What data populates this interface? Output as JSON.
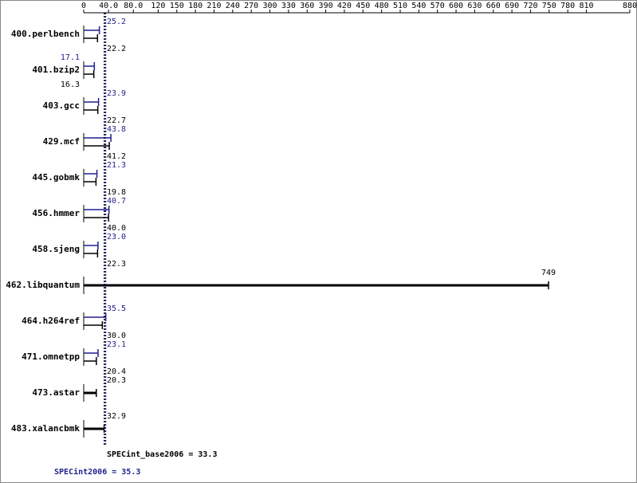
{
  "chart_data": {
    "type": "hbar-pair",
    "categories": [
      "400.perlbench",
      "401.bzip2",
      "403.gcc",
      "429.mcf",
      "445.gobmk",
      "456.hmmer",
      "458.sjeng",
      "462.libquantum",
      "464.h264ref",
      "471.omnetpp",
      "473.astar",
      "483.xalancbmk"
    ],
    "series": [
      {
        "name": "SPECint2006",
        "color": "#1f1f8f",
        "values": [
          25.2,
          17.1,
          23.9,
          43.8,
          21.3,
          40.7,
          23.0,
          null,
          35.5,
          23.1,
          null,
          null
        ],
        "value_labels": [
          "25.2",
          "17.1",
          "23.9",
          "43.8",
          "21.3",
          "40.7",
          "23.0",
          null,
          "35.5",
          "23.1",
          null,
          null
        ]
      },
      {
        "name": "SPECint_base2006",
        "color": "#000000",
        "values": [
          22.2,
          16.3,
          22.7,
          41.2,
          19.8,
          40.0,
          22.3,
          749,
          30.0,
          20.4,
          20.3,
          32.9
        ],
        "value_labels": [
          "22.2",
          "16.3",
          "22.7",
          "41.2",
          "19.8",
          "40.0",
          "22.3",
          "749",
          "30.0",
          "20.4",
          "20.3",
          "32.9"
        ]
      }
    ],
    "summary": [
      {
        "label": "SPECint_base2006 = 33.3",
        "value": 33.3,
        "color": "#000000"
      },
      {
        "label": "SPECint2006 = 35.3",
        "value": 35.3,
        "color": "#1f1f8f"
      }
    ],
    "xlim": [
      0,
      880
    ],
    "xticks": [
      0,
      {
        "value": 40,
        "label": "40.0"
      },
      {
        "value": 80,
        "label": "80.0"
      },
      120,
      150,
      180,
      210,
      240,
      270,
      300,
      330,
      360,
      390,
      420,
      450,
      480,
      510,
      540,
      570,
      600,
      630,
      660,
      690,
      720,
      750,
      780,
      810,
      880
    ]
  }
}
